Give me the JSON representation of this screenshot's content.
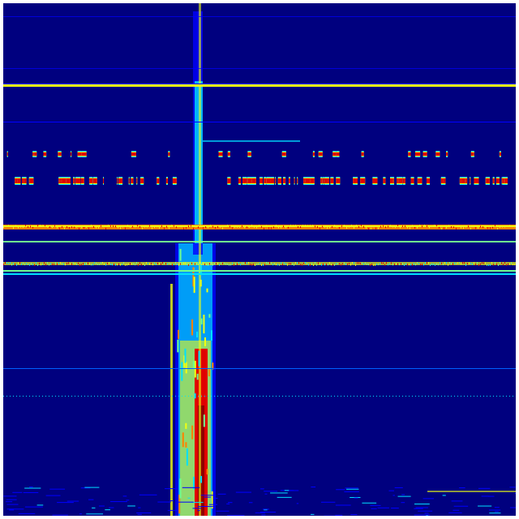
{
  "colormap": {
    "background": "#00007f",
    "blue": "#0000ff",
    "mid_blue": "#0060ff",
    "cyan": "#00e0ff",
    "green": "#70ff8f",
    "yellow": "#f0ff10",
    "orange": "#ff8000",
    "red": "#e00000",
    "dark_red": "#900000"
  }
}
